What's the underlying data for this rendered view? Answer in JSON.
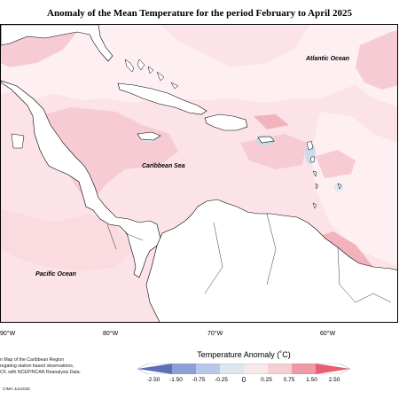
{
  "title": "Anomaly of the Mean Temperature for the period February to April 2025",
  "ocean_labels": {
    "atlantic": "Atlantic Ocean",
    "caribbean": "Caribbean Sea",
    "pacific": "Pacific Ocean"
  },
  "longitude_labels": [
    "90°W",
    "80°W",
    "70°W",
    "60°W"
  ],
  "caption": {
    "line1": "n Map of the Caribbean Region",
    "line2": "regating station based observations,",
    "line3": "CF, with NCEP/NCAR Reanalysis Data."
  },
  "credit": "CIMH Jun2025",
  "legend": {
    "title": "Temperature Anomaly (˚C)",
    "ticks": [
      "-2.50",
      "-1.50",
      "-0.75",
      "-0.25",
      "0",
      "0.25",
      "0.75",
      "1.50",
      "2.50"
    ],
    "colors": [
      "#5d6fb7",
      "#8aa0d6",
      "#b9c8e8",
      "#dce7ef",
      "#f6e9ea",
      "#f5cfd4",
      "#ee9aa6",
      "#e66070"
    ]
  },
  "colors": {
    "land": "#ffffff",
    "anomaly_low": "#fdeef0",
    "anomaly_mid": "#f8d3d9",
    "anomaly_high": "#f2b3bd",
    "anomaly_cool": "#c9dce8",
    "coast": "#000000"
  }
}
